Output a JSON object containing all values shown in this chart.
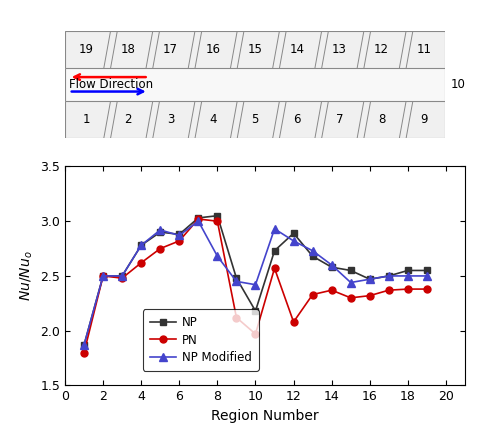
{
  "x": [
    1,
    2,
    3,
    4,
    5,
    6,
    7,
    8,
    9,
    10,
    11,
    12,
    13,
    14,
    15,
    16,
    17,
    18,
    19
  ],
  "NP": [
    1.87,
    2.5,
    2.5,
    2.78,
    2.9,
    2.88,
    3.03,
    3.05,
    2.48,
    2.18,
    2.73,
    2.89,
    2.68,
    2.58,
    2.55,
    2.47,
    2.5,
    2.55,
    2.55
  ],
  "PN": [
    1.8,
    2.5,
    2.48,
    2.62,
    2.75,
    2.82,
    3.02,
    3.0,
    2.12,
    1.97,
    2.57,
    2.08,
    2.33,
    2.37,
    2.3,
    2.32,
    2.37,
    2.38,
    2.38
  ],
  "NP_Modified": [
    1.87,
    2.5,
    2.5,
    2.78,
    2.92,
    2.87,
    3.0,
    2.68,
    2.45,
    2.42,
    2.93,
    2.82,
    2.73,
    2.6,
    2.44,
    2.47,
    2.5,
    2.5,
    2.5
  ],
  "NP_color": "#333333",
  "PN_color": "#cc0000",
  "NP_Modified_color": "#4444cc",
  "xlabel": "Region Number",
  "xlim": [
    0,
    21
  ],
  "ylim": [
    1.5,
    3.5
  ],
  "xticks": [
    0,
    2,
    4,
    6,
    8,
    10,
    12,
    14,
    16,
    18,
    20
  ],
  "yticks": [
    1.5,
    2.0,
    2.5,
    3.0,
    3.5
  ],
  "top_labels": [
    "19",
    "18",
    "17",
    "16",
    "15",
    "14",
    "13",
    "12",
    "11"
  ],
  "bot_labels": [
    "1",
    "2",
    "3",
    "4",
    "5",
    "6",
    "7",
    "8",
    "9"
  ],
  "side_label": "10",
  "flow_label": "Flow Direction",
  "channel_bg": "#f0f0f0",
  "channel_border": "#888888"
}
